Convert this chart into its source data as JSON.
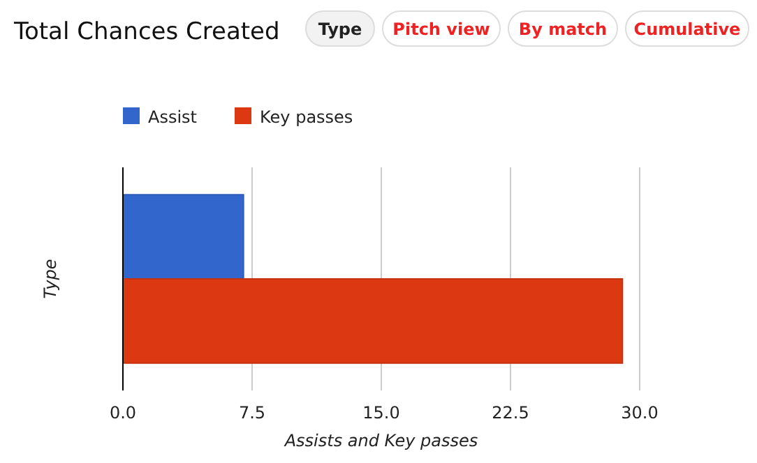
{
  "chart_data": {
    "type": "bar",
    "title": "Total Chances Created",
    "orientation": "horizontal",
    "categories": [
      null
    ],
    "ylabel": "Type",
    "xlabel": "Assists and Key passes",
    "series": [
      {
        "name": "Assist",
        "color": "#3366cc",
        "values": [
          7
        ]
      },
      {
        "name": "Key passes",
        "color": "#dc3912",
        "values": [
          29
        ]
      }
    ],
    "xlim": [
      0,
      30
    ],
    "xticks": [
      {
        "value": 0,
        "label": "0.0"
      },
      7.5,
      {
        "value": 15,
        "label": "15.0"
      },
      22.5,
      {
        "value": 30,
        "label": "30.0"
      }
    ],
    "grid": "x",
    "legend": "top left",
    "annotations": [
      "Type",
      "Pitch view",
      "By match",
      "Cumulative"
    ]
  }
}
